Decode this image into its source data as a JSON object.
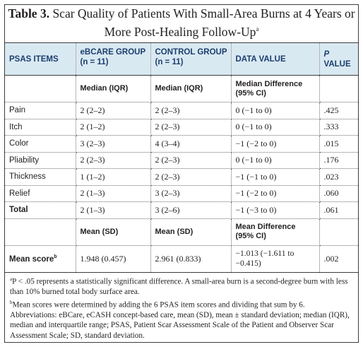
{
  "title": {
    "label": "Table 3.",
    "text_line1": "Scar Quality of Patients With Small-Area Burns at 4 Years or",
    "text_line2": "More Post-Healing Follow-Up",
    "sup": "a"
  },
  "columns": [
    {
      "line1": "PSAS ITEMS",
      "line2": ""
    },
    {
      "line1": "eBCARE GROUP",
      "line2": "(n = 11)"
    },
    {
      "line1": "CONTROL GROUP",
      "line2": "(n = 11)"
    },
    {
      "line1": "DATA VALUE",
      "line2": ""
    },
    {
      "line1": "P",
      "line2": "VALUE"
    }
  ],
  "subheader_median": {
    "c2": "Median (IQR)",
    "c3": "Median (IQR)",
    "c4_line1": "Median Difference",
    "c4_line2": "(95% CI)"
  },
  "rows": [
    {
      "item": "Pain",
      "ebcare": "2 (2–2)",
      "control": "2 (2–3)",
      "diff": "0 (−1 to 0)",
      "p": ".425"
    },
    {
      "item": "Itch",
      "ebcare": "2 (1–2)",
      "control": "2 (2–3)",
      "diff": "0 (−1 to 0)",
      "p": ".333"
    },
    {
      "item": "Color",
      "ebcare": "3 (2–3)",
      "control": "4 (3–4)",
      "diff": "−1 (−2 to 0)",
      "p": ".015"
    },
    {
      "item": "Pliability",
      "ebcare": "2 (2–3)",
      "control": "2 (2–3)",
      "diff": "0 (−1 to 0)",
      "p": ".176"
    },
    {
      "item": "Thickness",
      "ebcare": "1 (1–2)",
      "control": "2 (2–3)",
      "diff": "−1 (−1 to 0)",
      "p": ".023"
    },
    {
      "item": "Relief",
      "ebcare": "2 (1–3)",
      "control": "3 (2–3)",
      "diff": "−1 (−2 to 0)",
      "p": ".060"
    },
    {
      "item": "Total",
      "ebcare": "2 (1–3)",
      "control": "3 (2–6)",
      "diff": "−1 (−3 to 0)",
      "p": ".061"
    }
  ],
  "subheader_mean": {
    "c2": "Mean (SD)",
    "c3": "Mean (SD)",
    "c4_line1": "Mean Difference",
    "c4_line2": "(95% CI)"
  },
  "mean_row": {
    "item": "Mean score",
    "item_sup": "b",
    "ebcare": "1.948 (0.457)",
    "control": "2.961 (0.833)",
    "diff_line1": "−1.013 (−1.611 to",
    "diff_line2": "−0.415)",
    "p": ".002"
  },
  "footnotes": {
    "a_sup": "a",
    "a_text": "P < .05 represents a statistically significant difference. A small-area burn is a second-degree burn with less than 10% burned total body surface area.",
    "b_sup": "b",
    "b_text": "Mean scores were determined by adding the 6 PSAS item scores and dividing that sum by 6.",
    "abbrev": "Abbreviations: eBCare, eCASH concept-based care, mean (SD), mean ± standard deviation; median (IQR), median and interquartile range; PSAS, Patient Scar Assessment Scale of the Patient and Observer Scar Assessment Scale; SD, standard deviation."
  }
}
